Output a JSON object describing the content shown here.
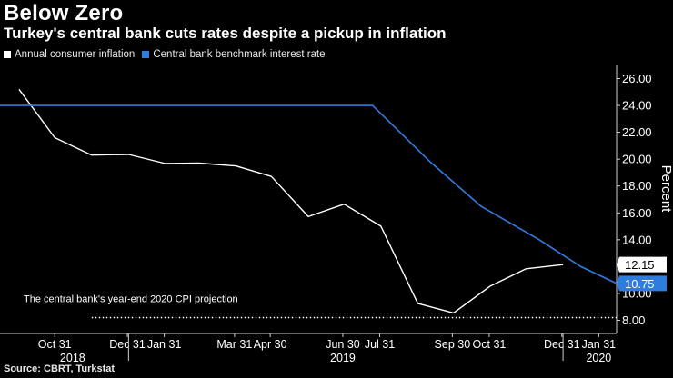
{
  "title": "Below Zero",
  "subtitle": "Turkey's central bank cuts rates despite a pickup in inflation",
  "source": "Source: CBRT, Turkstat",
  "colors": {
    "background": "#000000",
    "inflation_line": "#ffffff",
    "rate_line": "#2f7ce0",
    "axis": "#cfcfcf",
    "inflation_label_bg": "#ffffff",
    "rate_label_bg": "#2f7ce0"
  },
  "chart_data": {
    "type": "line",
    "title": "Below Zero",
    "subtitle": "Turkey's central bank cuts rates despite a pickup in inflation",
    "ylabel": "Percent",
    "ylim": [
      7.0,
      27.0
    ],
    "y_ticks": [
      "8.00",
      "10.00",
      "12.00",
      "14.00",
      "16.00",
      "18.00",
      "20.00",
      "22.00",
      "24.00",
      "26.00"
    ],
    "x_range": [
      "2018-09-15",
      "2020-02-15"
    ],
    "x_tick_labels": [
      {
        "label": "Oct 31",
        "date": "2018-10-31"
      },
      {
        "label": "Dec 31",
        "date": "2018-12-31"
      },
      {
        "label": "Jan 31",
        "date": "2019-01-31"
      },
      {
        "label": "Mar 31",
        "date": "2019-03-31"
      },
      {
        "label": "Apr 30",
        "date": "2019-04-30"
      },
      {
        "label": "Jun 30",
        "date": "2019-06-30"
      },
      {
        "label": "Jul 31",
        "date": "2019-07-31"
      },
      {
        "label": "Sep 30",
        "date": "2019-09-30"
      },
      {
        "label": "Oct 31",
        "date": "2019-10-31"
      },
      {
        "label": "Dec 31",
        "date": "2019-12-31"
      },
      {
        "label": "Jan 31",
        "date": "2020-01-31"
      }
    ],
    "year_labels": [
      {
        "label": "2018",
        "date": "2018-11-15"
      },
      {
        "label": "2019",
        "date": "2019-06-30"
      },
      {
        "label": "2020",
        "date": "2020-01-31"
      }
    ],
    "legend_position": "top-left",
    "grid": false,
    "series": [
      {
        "name": "Annual consumer inflation",
        "color": "#ffffff",
        "end_label": "12.15",
        "points": [
          {
            "x": "2018-10-01",
            "y": 25.2
          },
          {
            "x": "2018-10-31",
            "y": 21.6
          },
          {
            "x": "2018-12-01",
            "y": 20.3
          },
          {
            "x": "2019-01-01",
            "y": 20.35
          },
          {
            "x": "2019-02-01",
            "y": 19.67
          },
          {
            "x": "2019-03-01",
            "y": 19.71
          },
          {
            "x": "2019-04-01",
            "y": 19.5
          },
          {
            "x": "2019-05-01",
            "y": 18.71
          },
          {
            "x": "2019-06-01",
            "y": 15.72
          },
          {
            "x": "2019-07-01",
            "y": 16.65
          },
          {
            "x": "2019-08-01",
            "y": 15.01
          },
          {
            "x": "2019-09-01",
            "y": 9.26
          },
          {
            "x": "2019-10-01",
            "y": 8.55
          },
          {
            "x": "2019-11-01",
            "y": 10.56
          },
          {
            "x": "2019-12-01",
            "y": 11.84
          },
          {
            "x": "2020-01-01",
            "y": 12.15
          }
        ]
      },
      {
        "name": "Central bank benchmark interest rate",
        "color": "#2f7ce0",
        "end_label": "10.75",
        "points": [
          {
            "x": "2018-09-15",
            "y": 24.0
          },
          {
            "x": "2019-07-25",
            "y": 24.0
          },
          {
            "x": "2019-09-12",
            "y": 19.75
          },
          {
            "x": "2019-10-24",
            "y": 16.5
          },
          {
            "x": "2019-12-12",
            "y": 14.0
          },
          {
            "x": "2020-01-16",
            "y": 12.0
          },
          {
            "x": "2020-02-15",
            "y": 10.75
          }
        ]
      }
    ],
    "annotations": [
      {
        "text": "The central bank's year-end 2020 CPI projection",
        "line_y": 8.2,
        "line_style": "dotted",
        "x_start": "2018-12-01"
      }
    ]
  }
}
